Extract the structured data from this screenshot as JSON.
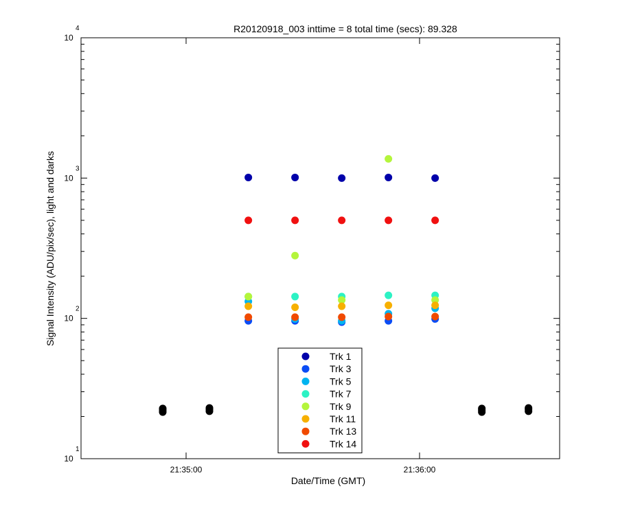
{
  "chart_data": {
    "type": "scatter",
    "title": "R20120918_003 inttime = 8 total time (secs): 89.328",
    "xlabel": "Date/Time (GMT)",
    "ylabel": "Signal Intensity (ADU/pix/sec), light and darks",
    "xlim": [
      "21:34:33",
      "21:36:36"
    ],
    "ylim": [
      10,
      10000
    ],
    "yscale": "log",
    "x_ticks": [
      "21:35:00",
      "21:36:00"
    ],
    "y_ticks": [
      {
        "value": 10,
        "base": "10",
        "exp": "1"
      },
      {
        "value": 100,
        "base": "10",
        "exp": "2"
      },
      {
        "value": 1000,
        "base": "10",
        "exp": "3"
      },
      {
        "value": 10000,
        "base": "10",
        "exp": "4"
      }
    ],
    "legend_position": "bottom-center",
    "grid": false,
    "series": [
      {
        "name": "Trk 1",
        "color": "#0000aa",
        "points": [
          [
            "21:35:16",
            1010
          ],
          [
            "21:35:28",
            1010
          ],
          [
            "21:35:40",
            1000
          ],
          [
            "21:35:52",
            1010
          ],
          [
            "21:36:04",
            1000
          ]
        ]
      },
      {
        "name": "Trk 3",
        "color": "#0a4cf5",
        "points": [
          [
            "21:35:16",
            96
          ],
          [
            "21:35:28",
            96
          ],
          [
            "21:35:40",
            94
          ],
          [
            "21:35:52",
            96
          ],
          [
            "21:36:04",
            99
          ]
        ]
      },
      {
        "name": "Trk 5",
        "color": "#00b4f0",
        "points": [
          [
            "21:35:16",
            132
          ],
          [
            "21:35:28",
            99
          ],
          [
            "21:35:40",
            96
          ],
          [
            "21:35:52",
            108
          ],
          [
            "21:36:04",
            118
          ]
        ]
      },
      {
        "name": "Trk 7",
        "color": "#2cf2c4",
        "points": [
          [
            "21:35:16",
            143
          ],
          [
            "21:35:28",
            143
          ],
          [
            "21:35:40",
            143
          ],
          [
            "21:35:52",
            146
          ],
          [
            "21:36:04",
            146
          ]
        ]
      },
      {
        "name": "Trk 9",
        "color": "#b4f53c",
        "points": [
          [
            "21:35:16",
            143
          ],
          [
            "21:35:28",
            280
          ],
          [
            "21:35:40",
            135
          ],
          [
            "21:35:52",
            1370
          ],
          [
            "21:36:04",
            135
          ]
        ]
      },
      {
        "name": "Trk 11",
        "color": "#f7b000",
        "points": [
          [
            "21:35:16",
            122
          ],
          [
            "21:35:28",
            120
          ],
          [
            "21:35:40",
            122
          ],
          [
            "21:35:52",
            124
          ],
          [
            "21:36:04",
            124
          ]
        ]
      },
      {
        "name": "Trk 13",
        "color": "#f04a00",
        "points": [
          [
            "21:35:16",
            102
          ],
          [
            "21:35:28",
            102
          ],
          [
            "21:35:40",
            102
          ],
          [
            "21:35:52",
            103
          ],
          [
            "21:36:04",
            103
          ]
        ]
      },
      {
        "name": "Trk 14",
        "color": "#f01010",
        "points": [
          [
            "21:35:16",
            500
          ],
          [
            "21:35:28",
            500
          ],
          [
            "21:35:40",
            500
          ],
          [
            "21:35:52",
            500
          ],
          [
            "21:36:04",
            500
          ]
        ]
      },
      {
        "color": "#000000",
        "legend": false,
        "points": [
          [
            "21:34:54",
            21.5
          ],
          [
            "21:34:54",
            22.2
          ],
          [
            "21:34:54",
            22.8
          ],
          [
            "21:35:06",
            21.8
          ],
          [
            "21:35:06",
            22.5
          ],
          [
            "21:35:06",
            23.0
          ],
          [
            "21:36:16",
            21.5
          ],
          [
            "21:36:16",
            22.2
          ],
          [
            "21:36:16",
            22.8
          ],
          [
            "21:36:28",
            21.8
          ],
          [
            "21:36:28",
            22.5
          ],
          [
            "21:36:28",
            23.0
          ]
        ]
      }
    ]
  }
}
